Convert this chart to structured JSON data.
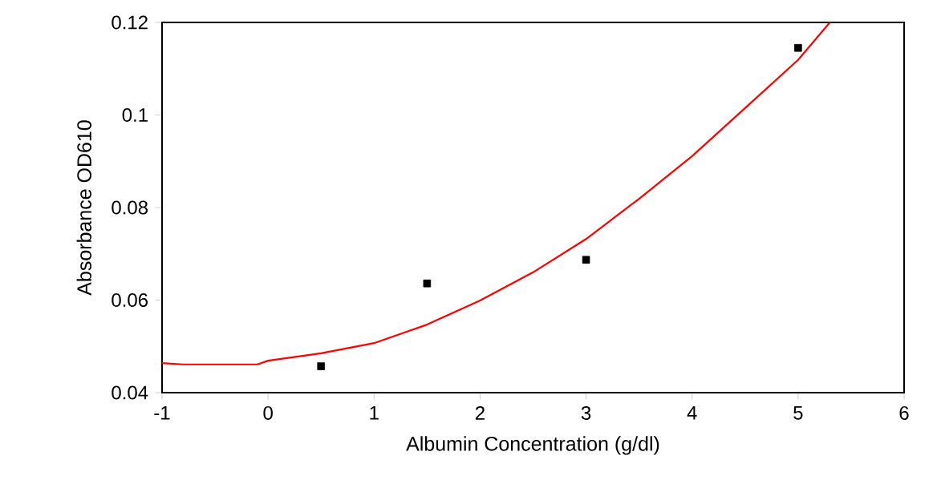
{
  "chart_data": {
    "type": "scatter",
    "xlabel": "Albumin Concentration (g/dl)",
    "ylabel": "Absorbance OD610",
    "xlim": [
      -1,
      6
    ],
    "ylim": [
      0.04,
      0.12
    ],
    "xticks": [
      -1,
      0,
      1,
      2,
      3,
      4,
      5,
      6
    ],
    "yticks": [
      0.04,
      0.06,
      0.08,
      0.1,
      0.12
    ],
    "grid": false,
    "series": [
      {
        "color": "#000000",
        "marker": "square",
        "x": [
          0.5,
          1.5,
          3,
          5
        ],
        "values": [
          0.0457,
          0.0636,
          0.0687,
          0.1145
        ]
      },
      {
        "type": "line",
        "color": "#ff0000",
        "marker": "none",
        "line_style": "solid",
        "x": [
          -1,
          -0.8,
          -0.1,
          0,
          0.5,
          1,
          1.5,
          2,
          2.5,
          3,
          3.5,
          4,
          4.5,
          5,
          5.3
        ],
        "values": [
          0.0464,
          0.0461,
          0.0461,
          0.0469,
          0.0485,
          0.0507,
          0.0547,
          0.0599,
          0.066,
          0.0732,
          0.0819,
          0.0911,
          0.1015,
          0.1119,
          0.12
        ]
      }
    ]
  }
}
